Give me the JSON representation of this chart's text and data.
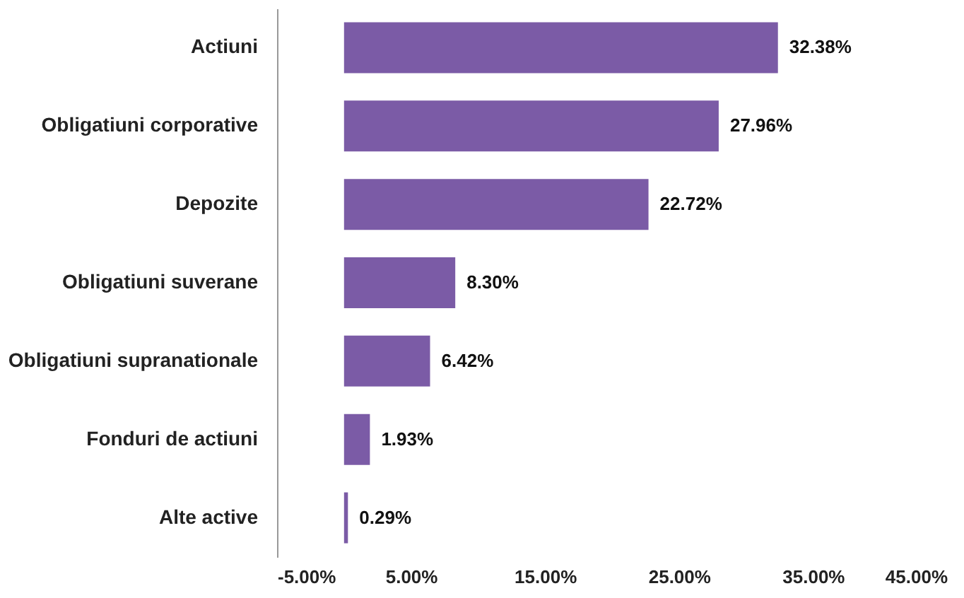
{
  "chart_data": {
    "type": "bar",
    "orientation": "horizontal",
    "categories": [
      "Actiuni",
      "Obligatiuni corporative",
      "Depozite",
      "Obligatiuni suverane",
      "Obligatiuni supranationale",
      "Fonduri de actiuni",
      "Alte active"
    ],
    "values": [
      32.38,
      27.96,
      22.72,
      8.3,
      6.42,
      1.93,
      0.29
    ],
    "value_labels": [
      "32.38%",
      "27.96%",
      "22.72%",
      "8.30%",
      "6.42%",
      "1.93%",
      "0.29%"
    ],
    "color": "#7b5ba6",
    "xlim": [
      -5,
      45
    ],
    "xticks": [
      {
        "value": -5,
        "label": "-5.00%"
      },
      {
        "value": 5,
        "label": "5.00%"
      },
      {
        "value": 15,
        "label": "15.00%"
      },
      {
        "value": 25,
        "label": "25.00%"
      },
      {
        "value": 35,
        "label": "35.00%"
      },
      {
        "value": 45,
        "label": "45.00%"
      }
    ],
    "grid": false
  }
}
